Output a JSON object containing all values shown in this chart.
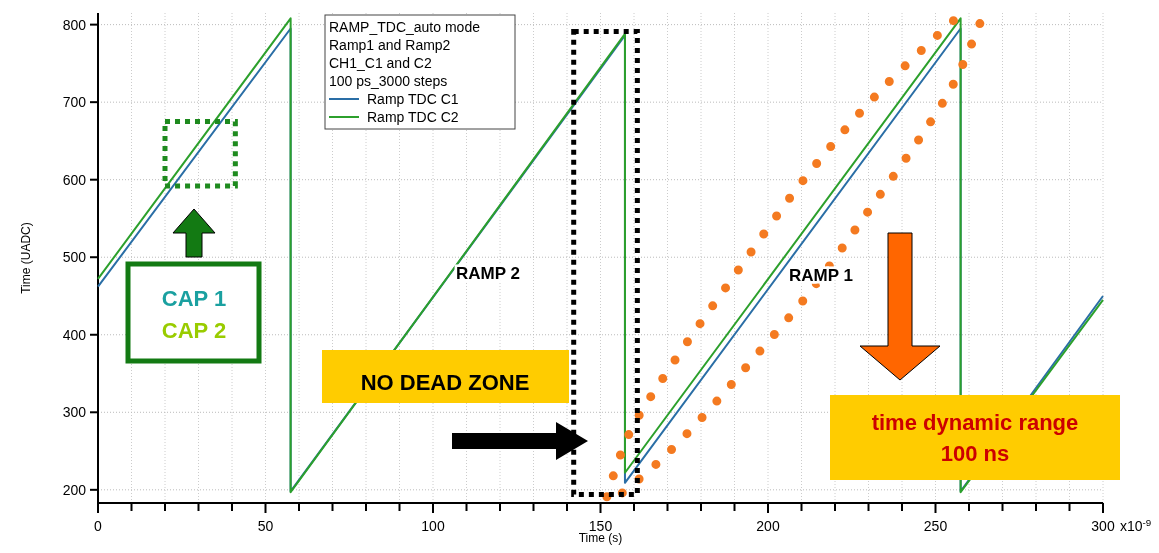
{
  "chart_data": {
    "type": "line",
    "xlabel": "Time (s)",
    "ylabel": "Time (UADC)",
    "legend_title": "RAMP_TDC_auto mode\nRamp1 and Ramp2\nCH1_C1 and C2\n100 ps_3000 steps",
    "x": [
      0,
      57.5,
      57.5,
      157.3,
      157.3,
      257.5,
      257.5,
      300
    ],
    "series": [
      {
        "name": "Ramp TDC C1",
        "color": "#2a6ea6",
        "values": [
          462,
          795,
          198,
          786,
          209,
          795,
          198,
          450
        ]
      },
      {
        "name": "Ramp TDC C2",
        "color": "#2ca02c",
        "values": [
          472,
          808,
          197,
          788,
          222,
          808,
          197,
          445
        ]
      },
      {
        "color": "#f47a20",
        "line_style": "dotted",
        "x": [
          151.9,
          158.3,
          171.1,
          189.9,
          212.3,
          234.7,
          257.6
        ],
        "values": [
          191,
          270,
          360,
          476,
          609,
          720,
          814
        ]
      },
      {
        "color": "#f47a20",
        "line_style": "dotted",
        "x": [
          156.5,
          167.6,
          180.9,
          196.6,
          212.3,
          229.2,
          246,
          255.9,
          264.3
        ],
        "values": [
          196,
          237,
          296,
          374,
          454,
          555,
          658,
          728,
          813
        ]
      }
    ],
    "xlim": [
      0,
      300
    ],
    "ylim": [
      183,
      815
    ],
    "xticks": [
      0,
      {
        "value": 10,
        "label": null
      },
      {
        "value": 20,
        "label": null
      },
      {
        "value": 30,
        "label": null
      },
      {
        "value": 40,
        "label": null
      },
      50,
      {
        "value": 60,
        "label": null
      },
      {
        "value": 70,
        "label": null
      },
      {
        "value": 80,
        "label": null
      },
      {
        "value": 90,
        "label": null
      },
      100,
      {
        "value": 110,
        "label": null
      },
      {
        "value": 120,
        "label": null
      },
      {
        "value": 130,
        "label": null
      },
      {
        "value": 140,
        "label": null
      },
      150,
      {
        "value": 160,
        "label": null
      },
      {
        "value": 170,
        "label": null
      },
      {
        "value": 180,
        "label": null
      },
      {
        "value": 190,
        "label": null
      },
      200,
      {
        "value": 210,
        "label": null
      },
      {
        "value": 220,
        "label": null
      },
      {
        "value": 230,
        "label": null
      },
      {
        "value": 240,
        "label": null
      },
      250,
      {
        "value": 260,
        "label": null
      },
      {
        "value": 270,
        "label": null
      },
      {
        "value": 280,
        "label": null
      },
      {
        "value": 290,
        "label": null
      },
      300
    ],
    "yticks": [
      200,
      300,
      400,
      500,
      600,
      700,
      800
    ],
    "grid": true,
    "legend": "top",
    "marker": "none",
    "line_style": "solid",
    "annotations": [
      "x10$^{-9}$",
      "RAMP 2",
      "RAMP 1",
      "CAP 1",
      "CAP 2",
      "NO DEAD ZONE",
      "time dynamic range",
      "100 ns"
    ]
  }
}
